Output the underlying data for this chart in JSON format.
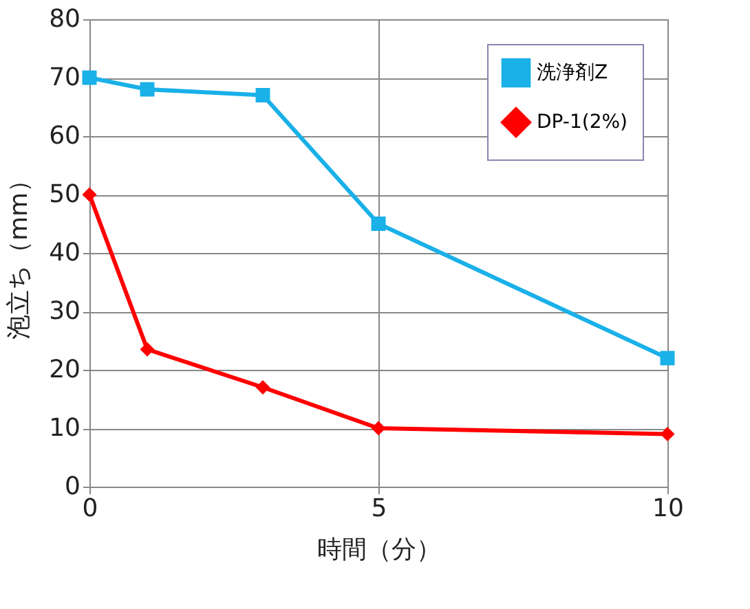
{
  "chart_data": {
    "type": "line",
    "xlabel": "時間（分）",
    "ylabel": "泡立ち（mm）",
    "xlim": [
      0,
      10
    ],
    "xticks": [
      0,
      5,
      10
    ],
    "ylim": [
      0,
      80
    ],
    "yticks": [
      0,
      10,
      20,
      30,
      40,
      50,
      60,
      70,
      80
    ],
    "grid": true,
    "legend": "top right",
    "line_style": "solid",
    "series": [
      {
        "name": "洗浄剤Z",
        "color": "#1ab0e8",
        "marker": "square",
        "x": [
          0,
          1,
          3,
          5,
          10
        ],
        "values": [
          70,
          68,
          67,
          45,
          22
        ]
      },
      {
        "name": "DP-1(2%)",
        "color": "#ff0000",
        "marker": "diamond",
        "x": [
          0,
          1,
          3,
          5,
          10
        ],
        "values": [
          50,
          23.5,
          17,
          10,
          9
        ]
      }
    ]
  }
}
